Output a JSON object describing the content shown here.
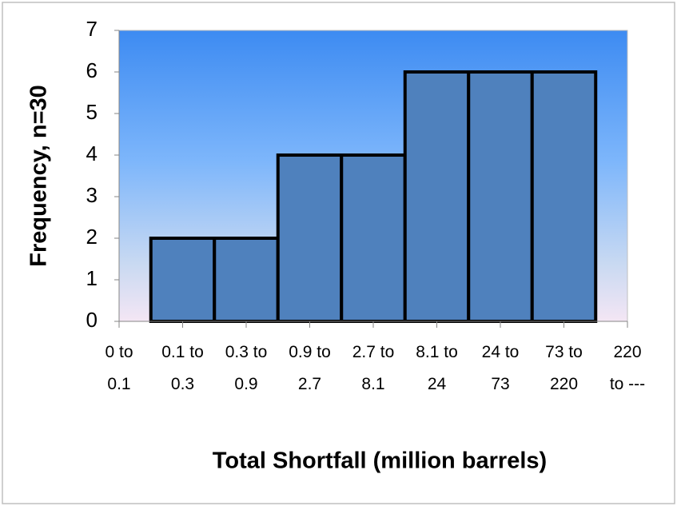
{
  "chart_data": {
    "type": "bar",
    "categories": [
      "0 to 0.1",
      "0.1 to 0.3",
      "0.3 to 0.9",
      "0.9 to 2.7",
      "2.7 to 8.1",
      "8.1 to 24",
      "24 to 73",
      "73 to 220",
      "220 to ---"
    ],
    "values": [
      0,
      2,
      2,
      4,
      4,
      6,
      6,
      6,
      0
    ],
    "color": "#4f81bd",
    "xlabel": "Total Shortfall (million barrels)",
    "ylabel": "Frequency, n=30",
    "ylim": [
      0,
      7
    ],
    "yticks": [
      0,
      1,
      2,
      3,
      4,
      5,
      6,
      7
    ],
    "grid": false
  }
}
